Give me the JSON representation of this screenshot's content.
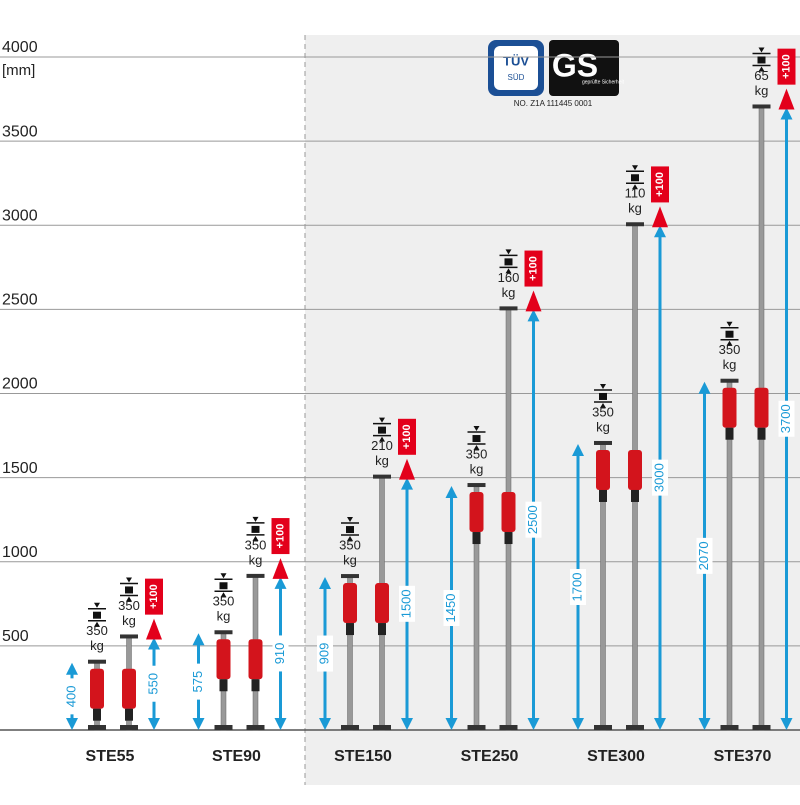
{
  "chart_data": {
    "type": "bar",
    "y_unit": "[mm]",
    "ylim": [
      0,
      4000
    ],
    "yticks": [
      500,
      1000,
      1500,
      2000,
      2500,
      3000,
      3500,
      4000
    ],
    "grid": true,
    "categories": [
      "STE55",
      "STE90",
      "STE150",
      "STE250",
      "STE300",
      "STE370"
    ],
    "series": [
      {
        "color": "#1a9ad6",
        "values": [
          400,
          575,
          909,
          1450,
          1700,
          2070
        ],
        "loads": [
          350,
          350,
          350,
          350,
          350,
          350
        ]
      },
      {
        "color": "#1a9ad6",
        "values": [
          550,
          910,
          1500,
          2500,
          3000,
          3700
        ],
        "loads": [
          350,
          350,
          210,
          160,
          110,
          65
        ]
      }
    ],
    "extension": {
      "value": 100,
      "label": "+100",
      "color": "#e3001b"
    },
    "load_unit": "kg",
    "certification": {
      "tuv": "TÜV",
      "sud": "SÜD",
      "gs": "GS",
      "gs_caption": "geprüfte Sicherheit",
      "number": "NO. Z1A 111445 0001"
    }
  }
}
